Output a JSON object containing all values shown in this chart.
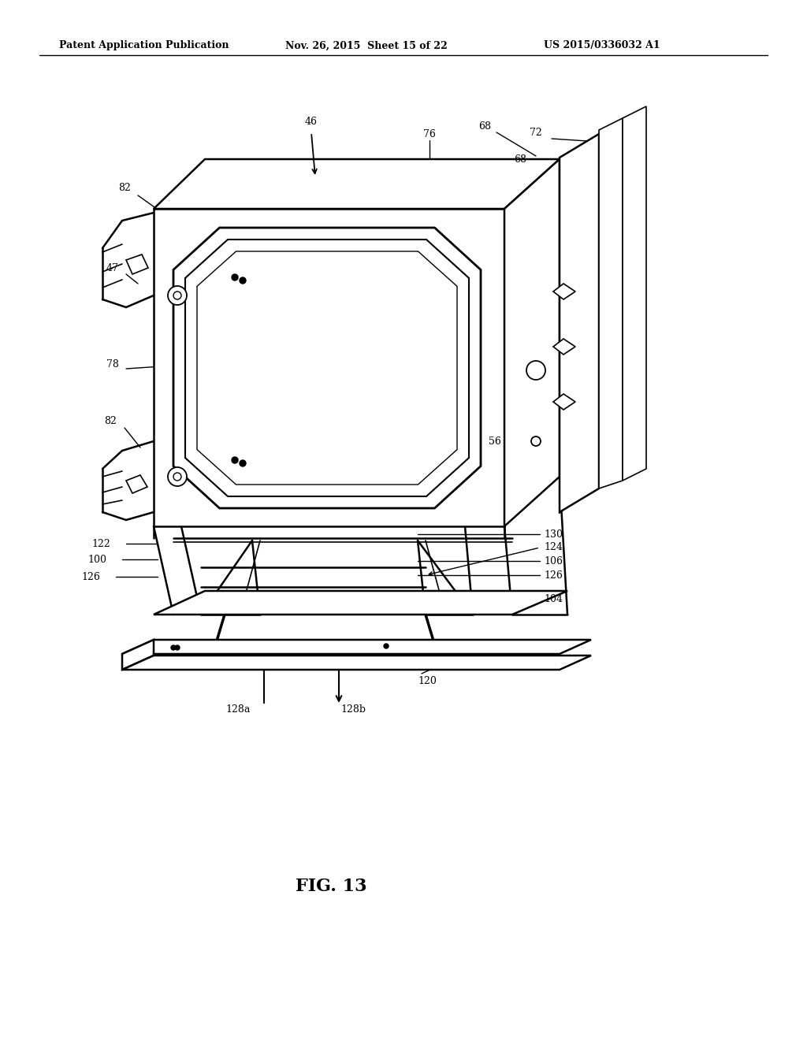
{
  "bg_color": "#ffffff",
  "line_color": "#000000",
  "header_text": "Patent Application Publication",
  "header_date": "Nov. 26, 2015  Sheet 15 of 22",
  "header_patent": "US 2015/0336032 A1",
  "figure_label": "FIG. 13",
  "lw_main": 1.8,
  "lw_thin": 1.2,
  "lw_detail": 1.0
}
